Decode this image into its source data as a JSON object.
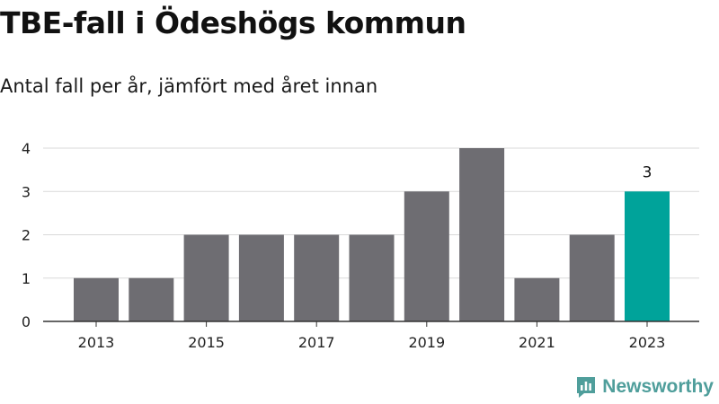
{
  "title": "TBE-fall i Ödeshögs kommun",
  "subtitle": "Antal fall per år, jämfört med året innan",
  "brand": {
    "name": "Newsworthy",
    "color": "#4f9e9b",
    "icon": "newsworthy-logo-icon"
  },
  "colors": {
    "bar": "#6e6d72",
    "highlight": "#00a39a",
    "grid": "#d9d9d9",
    "axis": "#333333"
  },
  "chart_data": {
    "type": "bar",
    "categories": [
      "2013",
      "2014",
      "2015",
      "2016",
      "2017",
      "2018",
      "2019",
      "2020",
      "2021",
      "2022",
      "2023"
    ],
    "values": [
      1,
      1,
      2,
      2,
      2,
      2,
      3,
      4,
      1,
      2,
      3
    ],
    "highlight_category": "2023",
    "data_labels": [
      {
        "category": "2023",
        "text": "3"
      }
    ],
    "x_tick_labels": [
      "2013",
      "2015",
      "2017",
      "2019",
      "2021",
      "2023"
    ],
    "y_ticks": [
      0,
      1,
      2,
      3,
      4
    ],
    "ylim": [
      0,
      4
    ],
    "xlabel": "",
    "ylabel": "",
    "grid": true,
    "legend": "none"
  }
}
